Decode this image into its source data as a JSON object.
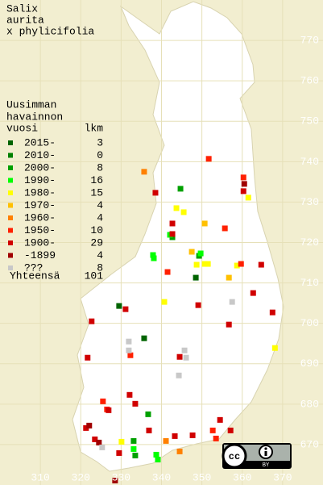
{
  "title": [
    "Salix",
    "aurita",
    "x phylicifolia"
  ],
  "legend": {
    "header": [
      "Uusimman",
      "havainnon",
      "vuosi"
    ],
    "count_header": "lkm",
    "entries": [
      {
        "label": "2015-",
        "count": 3,
        "color": "#006400",
        "points": [
          [
            329.4,
            704.4
          ],
          [
            348.4,
            711.4
          ],
          [
            335.6,
            696.4
          ]
        ]
      },
      {
        "label": "2010-",
        "count": 0,
        "color": "#008000",
        "points": []
      },
      {
        "label": "2000-",
        "count": 8,
        "color": "#00a000",
        "points": [
          [
            344.6,
            733.4
          ],
          [
            342.6,
            721.4
          ],
          [
            333.0,
            671.0
          ],
          [
            333.4,
            667.4
          ],
          [
            336.6,
            677.6
          ],
          [
            349.2,
            716.8
          ]
        ]
      },
      {
        "label": "1990-",
        "count": 16,
        "color": "#00ff00",
        "points": [
          [
            337.8,
            717.0
          ],
          [
            338.0,
            716.2
          ],
          [
            342.0,
            722.0
          ],
          [
            333.0,
            669.0
          ],
          [
            338.6,
            667.6
          ],
          [
            339.0,
            666.4
          ],
          [
            349.6,
            717.4
          ]
        ]
      },
      {
        "label": "1980-",
        "count": 15,
        "color": "#ffff00",
        "points": [
          [
            343.6,
            728.6
          ],
          [
            345.4,
            727.6
          ],
          [
            350.6,
            714.8
          ],
          [
            348.6,
            714.6
          ],
          [
            351.4,
            714.8
          ],
          [
            368.0,
            694.0
          ],
          [
            361.4,
            731.2
          ],
          [
            340.6,
            705.4
          ],
          [
            358.6,
            714.4
          ],
          [
            330.0,
            670.8
          ]
        ]
      },
      {
        "label": "1970-",
        "count": 4,
        "color": "#ffc000",
        "points": [
          [
            350.6,
            724.8
          ],
          [
            347.4,
            717.8
          ],
          [
            356.6,
            711.4
          ]
        ]
      },
      {
        "label": "1960-",
        "count": 4,
        "color": "#ff8000",
        "points": [
          [
            335.6,
            737.6
          ],
          [
            344.4,
            668.4
          ],
          [
            341.0,
            671.0
          ]
        ]
      },
      {
        "label": "1950-",
        "count": 10,
        "color": "#ff2000",
        "points": [
          [
            351.6,
            740.8
          ],
          [
            355.6,
            723.6
          ],
          [
            360.2,
            736.2
          ],
          [
            359.6,
            714.8
          ],
          [
            341.4,
            712.8
          ],
          [
            332.2,
            692.2
          ],
          [
            352.6,
            673.6
          ],
          [
            325.4,
            680.8
          ],
          [
            326.4,
            678.8
          ],
          [
            353.4,
            671.6
          ]
        ]
      },
      {
        "label": "1900-",
        "count": 29,
        "color": "#d00000",
        "points": [
          [
            338.4,
            732.4
          ],
          [
            342.6,
            724.8
          ],
          [
            342.6,
            722.2
          ],
          [
            360.2,
            732.8
          ],
          [
            331.0,
            703.6
          ],
          [
            322.6,
            700.6
          ],
          [
            349.0,
            704.6
          ],
          [
            362.6,
            707.6
          ],
          [
            367.4,
            702.8
          ],
          [
            364.6,
            714.6
          ],
          [
            344.4,
            691.8
          ],
          [
            321.6,
            691.6
          ],
          [
            332.0,
            682.4
          ],
          [
            326.8,
            678.6
          ],
          [
            321.2,
            674.2
          ],
          [
            323.4,
            671.4
          ],
          [
            336.8,
            673.6
          ],
          [
            343.2,
            672.2
          ],
          [
            347.6,
            672.4
          ],
          [
            354.4,
            676.2
          ],
          [
            357.0,
            673.6
          ],
          [
            329.4,
            668.0
          ],
          [
            333.4,
            680.2
          ],
          [
            356.6,
            699.8
          ]
        ]
      },
      {
        "label": "-1899",
        "count": 4,
        "color": "#a00000",
        "points": [
          [
            322.0,
            674.8
          ],
          [
            324.4,
            670.6
          ],
          [
            328.4,
            661.2
          ],
          [
            360.4,
            734.6
          ]
        ]
      },
      {
        "label": "???",
        "count": 8,
        "color": "#c8c8c8",
        "points": [
          [
            331.8,
            695.6
          ],
          [
            331.8,
            693.4
          ],
          [
            345.6,
            693.4
          ],
          [
            346.0,
            691.6
          ],
          [
            357.4,
            705.4
          ],
          [
            325.2,
            669.4
          ],
          [
            344.2,
            687.2
          ]
        ]
      }
    ]
  },
  "total": {
    "label": "Yhteensä",
    "count": 101
  },
  "xlim": [
    300,
    380
  ],
  "ylim": [
    660,
    780
  ],
  "xticks": [
    310,
    320,
    330,
    340,
    350,
    360,
    370
  ],
  "yticks": [
    670,
    680,
    690,
    700,
    710,
    720,
    730,
    740,
    750,
    760,
    770
  ],
  "license": "BY"
}
